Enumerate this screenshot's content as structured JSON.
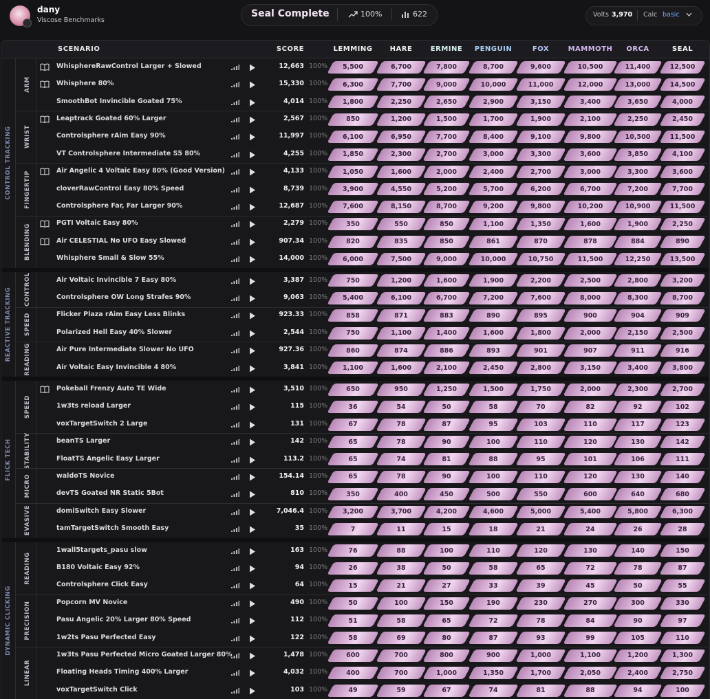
{
  "header": {
    "name": "dany",
    "subtitle": "Viscose Benchmarks",
    "title": "Seal Complete",
    "completion": "100%",
    "count": "622",
    "volts_label": "Volts",
    "volts": "3,970",
    "calc_label": "Calc",
    "calc": "basic"
  },
  "table": {
    "columns": [
      "SCENARIO",
      "SCORE",
      "LEMMING",
      "HARE",
      "ERMINE",
      "PENGUIN",
      "FOX",
      "MAMMOTH",
      "ORCA",
      "SEAL"
    ],
    "categories": [
      {
        "label": "CONTROL TRACKING",
        "groups": [
          {
            "label": "ARM",
            "rows": [
              {
                "name": "WhisphereRawControl Larger + Slowed",
                "guide": true,
                "score": "12,663",
                "percent": "100%",
                "thresholds": [
                  "5,500",
                  "6,700",
                  "7,800",
                  "8,700",
                  "9,600",
                  "10,500",
                  "11,400",
                  "12,500"
                ]
              },
              {
                "name": "Whisphere 80%",
                "guide": true,
                "score": "15,330",
                "percent": "100%",
                "thresholds": [
                  "6,300",
                  "7,700",
                  "9,000",
                  "10,000",
                  "11,000",
                  "12,000",
                  "13,000",
                  "14,500"
                ]
              },
              {
                "name": "SmoothBot Invincible Goated 75%",
                "score": "4,014",
                "percent": "100%",
                "thresholds": [
                  "1,800",
                  "2,250",
                  "2,650",
                  "2,900",
                  "3,150",
                  "3,400",
                  "3,650",
                  "4,000"
                ]
              }
            ]
          },
          {
            "label": "WRIST",
            "rows": [
              {
                "name": "Leaptrack Goated 60% Larger",
                "guide": true,
                "score": "2,567",
                "percent": "100%",
                "thresholds": [
                  "850",
                  "1,200",
                  "1,500",
                  "1,700",
                  "1,900",
                  "2,100",
                  "2,250",
                  "2,450"
                ]
              },
              {
                "name": "Controlsphere rAim Easy 90%",
                "score": "11,997",
                "percent": "100%",
                "thresholds": [
                  "6,100",
                  "6,950",
                  "7,700",
                  "8,400",
                  "9,100",
                  "9,800",
                  "10,500",
                  "11,500"
                ]
              },
              {
                "name": "VT Controlsphere Intermediate S5 80%",
                "score": "4,255",
                "percent": "100%",
                "thresholds": [
                  "1,850",
                  "2,300",
                  "2,700",
                  "3,000",
                  "3,300",
                  "3,600",
                  "3,850",
                  "4,100"
                ]
              }
            ]
          },
          {
            "label": "FINGERTIP",
            "rows": [
              {
                "name": "Air Angelic 4 Voltaic Easy 80% (Good Version)",
                "guide": true,
                "score": "4,133",
                "percent": "100%",
                "thresholds": [
                  "1,050",
                  "1,600",
                  "2,000",
                  "2,400",
                  "2,700",
                  "3,000",
                  "3,300",
                  "3,600"
                ]
              },
              {
                "name": "cloverRawControl Easy 80% Speed",
                "score": "8,739",
                "percent": "100%",
                "thresholds": [
                  "3,900",
                  "4,550",
                  "5,200",
                  "5,700",
                  "6,200",
                  "6,700",
                  "7,200",
                  "7,700"
                ]
              },
              {
                "name": "Controlsphere Far, Far Larger 90%",
                "score": "12,687",
                "percent": "100%",
                "thresholds": [
                  "7,600",
                  "8,150",
                  "8,700",
                  "9,200",
                  "9,800",
                  "10,200",
                  "10,900",
                  "11,500"
                ]
              }
            ]
          },
          {
            "label": "BLENDING",
            "rows": [
              {
                "name": "PGTI Voltaic Easy 80%",
                "guide": true,
                "score": "2,279",
                "percent": "100%",
                "thresholds": [
                  "350",
                  "550",
                  "850",
                  "1,100",
                  "1,350",
                  "1,600",
                  "1,900",
                  "2,250"
                ]
              },
              {
                "name": "Air CELESTIAL No UFO Easy Slowed",
                "guide": true,
                "score": "907.34",
                "percent": "100%",
                "thresholds": [
                  "820",
                  "835",
                  "850",
                  "861",
                  "870",
                  "878",
                  "884",
                  "890"
                ]
              },
              {
                "name": "Whisphere Small & Slow 55%",
                "score": "14,000",
                "percent": "100%",
                "thresholds": [
                  "6,000",
                  "7,500",
                  "9,000",
                  "10,000",
                  "10,750",
                  "11,500",
                  "12,250",
                  "13,500"
                ]
              }
            ]
          }
        ]
      },
      {
        "label": "REACTIVE TRACKING",
        "groups": [
          {
            "label": "CONTROL",
            "rows": [
              {
                "name": "Air Voltaic Invincible 7 Easy 80%",
                "score": "3,387",
                "percent": "100%",
                "thresholds": [
                  "750",
                  "1,200",
                  "1,600",
                  "1,900",
                  "2,200",
                  "2,500",
                  "2,800",
                  "3,200"
                ]
              },
              {
                "name": "Controlsphere OW Long Strafes 90%",
                "score": "9,063",
                "percent": "100%",
                "thresholds": [
                  "5,400",
                  "6,100",
                  "6,700",
                  "7,200",
                  "7,600",
                  "8,000",
                  "8,300",
                  "8,700"
                ]
              }
            ]
          },
          {
            "label": "SPEED",
            "rows": [
              {
                "name": "Flicker Plaza rAim Easy Less Blinks",
                "score": "923.33",
                "percent": "100%",
                "thresholds": [
                  "858",
                  "871",
                  "883",
                  "890",
                  "895",
                  "900",
                  "904",
                  "909"
                ]
              },
              {
                "name": "Polarized Hell Easy 40% Slower",
                "score": "2,544",
                "percent": "100%",
                "thresholds": [
                  "750",
                  "1,100",
                  "1,400",
                  "1,600",
                  "1,800",
                  "2,000",
                  "2,150",
                  "2,500"
                ]
              }
            ]
          },
          {
            "label": "READING",
            "rows": [
              {
                "name": "Air Pure Intermediate Slower No UFO",
                "score": "927.36",
                "percent": "100%",
                "thresholds": [
                  "860",
                  "874",
                  "886",
                  "893",
                  "901",
                  "907",
                  "911",
                  "916"
                ]
              },
              {
                "name": "Air Voltaic Easy Invincible 4 80%",
                "score": "3,841",
                "percent": "100%",
                "thresholds": [
                  "1,100",
                  "1,600",
                  "2,100",
                  "2,450",
                  "2,800",
                  "3,150",
                  "3,400",
                  "3,800"
                ]
              }
            ]
          }
        ]
      },
      {
        "label": "FLICK TECH",
        "groups": [
          {
            "label": "SPEED",
            "rows": [
              {
                "name": "Pokeball Frenzy Auto TE Wide",
                "guide": true,
                "score": "3,510",
                "percent": "100%",
                "thresholds": [
                  "650",
                  "950",
                  "1,250",
                  "1,500",
                  "1,750",
                  "2,000",
                  "2,300",
                  "2,700"
                ]
              },
              {
                "name": "1w3ts reload Larger",
                "score": "115",
                "percent": "100%",
                "thresholds": [
                  "36",
                  "54",
                  "50",
                  "58",
                  "70",
                  "82",
                  "92",
                  "102"
                ]
              },
              {
                "name": "voxTargetSwitch 2 Large",
                "score": "131",
                "percent": "100%",
                "thresholds": [
                  "67",
                  "78",
                  "87",
                  "95",
                  "103",
                  "110",
                  "117",
                  "123"
                ]
              }
            ]
          },
          {
            "label": "STABILITY",
            "rows": [
              {
                "name": "beanTS Larger",
                "score": "142",
                "percent": "100%",
                "thresholds": [
                  "65",
                  "78",
                  "90",
                  "100",
                  "110",
                  "120",
                  "130",
                  "142"
                ]
              },
              {
                "name": "FloatTS Angelic Easy Larger",
                "score": "113.2",
                "percent": "100%",
                "thresholds": [
                  "65",
                  "74",
                  "81",
                  "88",
                  "95",
                  "101",
                  "106",
                  "111"
                ]
              }
            ]
          },
          {
            "label": "MICRO",
            "rows": [
              {
                "name": "waldoTS Novice",
                "score": "154.14",
                "percent": "100%",
                "thresholds": [
                  "65",
                  "78",
                  "90",
                  "100",
                  "110",
                  "120",
                  "130",
                  "140"
                ]
              },
              {
                "name": "devTS Goated NR Static 5Bot",
                "score": "810",
                "percent": "100%",
                "thresholds": [
                  "350",
                  "400",
                  "450",
                  "500",
                  "550",
                  "600",
                  "640",
                  "680"
                ]
              }
            ]
          },
          {
            "label": "EVASIVE",
            "rows": [
              {
                "name": "domiSwitch Easy Slower",
                "score": "7,046.4",
                "percent": "100%",
                "thresholds": [
                  "3,200",
                  "3,700",
                  "4,200",
                  "4,600",
                  "5,000",
                  "5,400",
                  "5,800",
                  "6,300"
                ]
              },
              {
                "name": "tamTargetSwitch Smooth Easy",
                "score": "35",
                "percent": "100%",
                "thresholds": [
                  "7",
                  "11",
                  "15",
                  "18",
                  "21",
                  "24",
                  "26",
                  "28"
                ]
              }
            ]
          }
        ]
      },
      {
        "label": "DYNAMIC CLICKING",
        "groups": [
          {
            "label": "READING",
            "rows": [
              {
                "name": "1wall5targets_pasu slow",
                "score": "163",
                "percent": "100%",
                "thresholds": [
                  "76",
                  "88",
                  "100",
                  "110",
                  "120",
                  "130",
                  "140",
                  "150"
                ]
              },
              {
                "name": "B180 Voltaic Easy 92%",
                "score": "94",
                "percent": "100%",
                "thresholds": [
                  "26",
                  "38",
                  "50",
                  "58",
                  "65",
                  "72",
                  "78",
                  "87"
                ]
              },
              {
                "name": "Controlsphere Click Easy",
                "score": "64",
                "percent": "100%",
                "thresholds": [
                  "15",
                  "21",
                  "27",
                  "33",
                  "39",
                  "45",
                  "50",
                  "55"
                ]
              }
            ]
          },
          {
            "label": "PRECISION",
            "rows": [
              {
                "name": "Popcorn MV Novice",
                "score": "490",
                "percent": "100%",
                "thresholds": [
                  "50",
                  "100",
                  "150",
                  "190",
                  "230",
                  "270",
                  "300",
                  "330"
                ]
              },
              {
                "name": "Pasu Angelic 20% Larger 80% Speed",
                "score": "112",
                "percent": "100%",
                "thresholds": [
                  "51",
                  "58",
                  "65",
                  "72",
                  "78",
                  "84",
                  "90",
                  "97"
                ]
              },
              {
                "name": "1w2ts Pasu Perfected Easy",
                "score": "122",
                "percent": "100%",
                "thresholds": [
                  "58",
                  "69",
                  "80",
                  "87",
                  "93",
                  "99",
                  "105",
                  "110"
                ]
              }
            ]
          },
          {
            "label": "LINEAR",
            "rows": [
              {
                "name": "1w3ts Pasu Perfected Micro Goated Larger 80%",
                "score": "1,478",
                "percent": "100%",
                "thresholds": [
                  "600",
                  "700",
                  "800",
                  "900",
                  "1,000",
                  "1,100",
                  "1,200",
                  "1,300"
                ]
              },
              {
                "name": "Floating Heads Timing 400% Larger",
                "score": "4,032",
                "percent": "100%",
                "thresholds": [
                  "400",
                  "700",
                  "1,000",
                  "1,350",
                  "1,700",
                  "2,050",
                  "2,400",
                  "2,750"
                ]
              },
              {
                "name": "voxTargetSwitch Click",
                "score": "103",
                "percent": "100%",
                "thresholds": [
                  "49",
                  "59",
                  "67",
                  "74",
                  "81",
                  "88",
                  "94",
                  "100"
                ]
              }
            ]
          }
        ]
      }
    ]
  }
}
